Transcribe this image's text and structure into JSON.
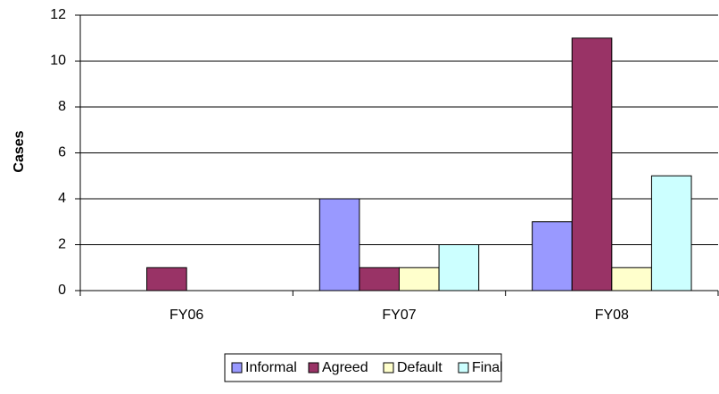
{
  "chart_data": {
    "type": "bar",
    "y_label": "Cases",
    "categories": [
      "FY06",
      "FY07",
      "FY08"
    ],
    "series": [
      {
        "name": "Informal",
        "color": "#9999ff",
        "values": [
          0,
          4,
          3
        ]
      },
      {
        "name": "Agreed",
        "color": "#993366",
        "values": [
          1,
          1,
          11
        ]
      },
      {
        "name": "Default",
        "color": "#ffffcc",
        "values": [
          0,
          1,
          1
        ]
      },
      {
        "name": "Final",
        "color": "#ccffff",
        "values": [
          0,
          2,
          5
        ]
      }
    ],
    "ylim": [
      0,
      12
    ],
    "yticks": [
      0,
      2,
      4,
      6,
      8,
      10,
      12
    ],
    "grid": true,
    "legend": "bottom"
  }
}
